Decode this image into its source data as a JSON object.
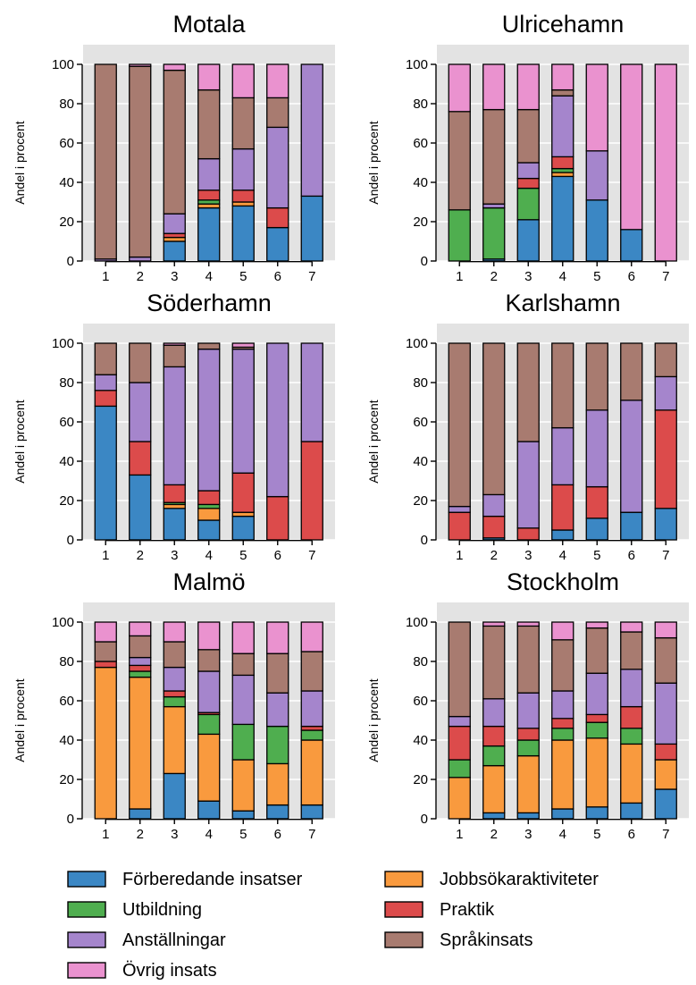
{
  "colors": {
    "forberedande": "#3b87c4",
    "jobbsok": "#f99a3e",
    "utbildning": "#4fae4f",
    "praktik": "#dc4b4b",
    "anstallningar": "#a585cc",
    "sprakinsats": "#a87b70",
    "ovrig": "#ea92cf",
    "panel_bg": "#e3e3e3"
  },
  "legend": {
    "items": [
      {
        "key": "forberedande",
        "label": "Förberedande insatser"
      },
      {
        "key": "jobbsok",
        "label": "Jobbsökaraktiviteter"
      },
      {
        "key": "utbildning",
        "label": "Utbildning"
      },
      {
        "key": "praktik",
        "label": "Praktik"
      },
      {
        "key": "anstallningar",
        "label": "Anställningar"
      },
      {
        "key": "sprakinsats",
        "label": "Språkinsats"
      },
      {
        "key": "ovrig",
        "label": "Övrig insats"
      }
    ]
  },
  "chart_data": {
    "type": "bar",
    "stacked": true,
    "stack_order": [
      "forberedande",
      "jobbsok",
      "utbildning",
      "praktik",
      "anstallningar",
      "sprakinsats",
      "ovrig"
    ],
    "ylabel": "Andel i procent",
    "ylim": [
      0,
      100
    ],
    "yticks": [
      0,
      20,
      40,
      60,
      80,
      100
    ],
    "categories": [
      "1",
      "2",
      "3",
      "4",
      "5",
      "6",
      "7"
    ],
    "grid": true,
    "legend_position": "bottom",
    "panels": [
      {
        "title": "Motala",
        "bars": [
          {
            "forberedande": 0,
            "jobbsok": 0,
            "utbildning": 0,
            "praktik": 0,
            "anstallningar": 1,
            "sprakinsats": 99,
            "ovrig": 0
          },
          {
            "forberedande": 0,
            "jobbsok": 0,
            "utbildning": 0,
            "praktik": 0,
            "anstallningar": 2,
            "sprakinsats": 97,
            "ovrig": 1
          },
          {
            "forberedande": 10,
            "jobbsok": 2,
            "utbildning": 0,
            "praktik": 2,
            "anstallningar": 10,
            "sprakinsats": 73,
            "ovrig": 3
          },
          {
            "forberedande": 27,
            "jobbsok": 2,
            "utbildning": 2,
            "praktik": 5,
            "anstallningar": 16,
            "sprakinsats": 35,
            "ovrig": 13
          },
          {
            "forberedande": 28,
            "jobbsok": 2,
            "utbildning": 0,
            "praktik": 6,
            "anstallningar": 21,
            "sprakinsats": 26,
            "ovrig": 17
          },
          {
            "forberedande": 17,
            "jobbsok": 0,
            "utbildning": 0,
            "praktik": 10,
            "anstallningar": 41,
            "sprakinsats": 15,
            "ovrig": 17
          },
          {
            "forberedande": 33,
            "jobbsok": 0,
            "utbildning": 0,
            "praktik": 0,
            "anstallningar": 67,
            "sprakinsats": 0,
            "ovrig": 0
          }
        ]
      },
      {
        "title": "Ulricehamn",
        "bars": [
          {
            "forberedande": 0,
            "jobbsok": 0,
            "utbildning": 26,
            "praktik": 0,
            "anstallningar": 0,
            "sprakinsats": 50,
            "ovrig": 24
          },
          {
            "forberedande": 1,
            "jobbsok": 0,
            "utbildning": 26,
            "praktik": 0,
            "anstallningar": 2,
            "sprakinsats": 48,
            "ovrig": 23
          },
          {
            "forberedande": 21,
            "jobbsok": 0,
            "utbildning": 16,
            "praktik": 5,
            "anstallningar": 8,
            "sprakinsats": 27,
            "ovrig": 23
          },
          {
            "forberedande": 43,
            "jobbsok": 2,
            "utbildning": 2,
            "praktik": 6,
            "anstallningar": 31,
            "sprakinsats": 3,
            "ovrig": 13
          },
          {
            "forberedande": 31,
            "jobbsok": 0,
            "utbildning": 0,
            "praktik": 0,
            "anstallningar": 25,
            "sprakinsats": 0,
            "ovrig": 44
          },
          {
            "forberedande": 16,
            "jobbsok": 0,
            "utbildning": 0,
            "praktik": 0,
            "anstallningar": 0,
            "sprakinsats": 0,
            "ovrig": 84
          },
          {
            "forberedande": 0,
            "jobbsok": 0,
            "utbildning": 0,
            "praktik": 0,
            "anstallningar": 0,
            "sprakinsats": 0,
            "ovrig": 100
          }
        ]
      },
      {
        "title": "Söderhamn",
        "bars": [
          {
            "forberedande": 68,
            "jobbsok": 0,
            "utbildning": 0,
            "praktik": 8,
            "anstallningar": 8,
            "sprakinsats": 16,
            "ovrig": 0
          },
          {
            "forberedande": 33,
            "jobbsok": 0,
            "utbildning": 0,
            "praktik": 17,
            "anstallningar": 30,
            "sprakinsats": 20,
            "ovrig": 0
          },
          {
            "forberedande": 16,
            "jobbsok": 2,
            "utbildning": 1,
            "praktik": 9,
            "anstallningar": 60,
            "sprakinsats": 11,
            "ovrig": 1
          },
          {
            "forberedande": 10,
            "jobbsok": 6,
            "utbildning": 2,
            "praktik": 7,
            "anstallningar": 72,
            "sprakinsats": 3,
            "ovrig": 0
          },
          {
            "forberedande": 12,
            "jobbsok": 2,
            "utbildning": 0,
            "praktik": 20,
            "anstallningar": 63,
            "sprakinsats": 1,
            "ovrig": 2
          },
          {
            "forberedande": 0,
            "jobbsok": 0,
            "utbildning": 0,
            "praktik": 22,
            "anstallningar": 78,
            "sprakinsats": 0,
            "ovrig": 0
          },
          {
            "forberedande": 0,
            "jobbsok": 0,
            "utbildning": 0,
            "praktik": 50,
            "anstallningar": 50,
            "sprakinsats": 0,
            "ovrig": 0
          }
        ]
      },
      {
        "title": "Karlshamn",
        "bars": [
          {
            "forberedande": 0,
            "jobbsok": 0,
            "utbildning": 0,
            "praktik": 14,
            "anstallningar": 3,
            "sprakinsats": 83,
            "ovrig": 0
          },
          {
            "forberedande": 1,
            "jobbsok": 0,
            "utbildning": 0,
            "praktik": 11,
            "anstallningar": 11,
            "sprakinsats": 77,
            "ovrig": 0
          },
          {
            "forberedande": 0,
            "jobbsok": 0,
            "utbildning": 0,
            "praktik": 6,
            "anstallningar": 44,
            "sprakinsats": 50,
            "ovrig": 0
          },
          {
            "forberedande": 5,
            "jobbsok": 0,
            "utbildning": 0,
            "praktik": 23,
            "anstallningar": 29,
            "sprakinsats": 43,
            "ovrig": 0
          },
          {
            "forberedande": 11,
            "jobbsok": 0,
            "utbildning": 0,
            "praktik": 16,
            "anstallningar": 39,
            "sprakinsats": 34,
            "ovrig": 0
          },
          {
            "forberedande": 14,
            "jobbsok": 0,
            "utbildning": 0,
            "praktik": 0,
            "anstallningar": 57,
            "sprakinsats": 29,
            "ovrig": 0
          },
          {
            "forberedande": 16,
            "jobbsok": 0,
            "utbildning": 0,
            "praktik": 50,
            "anstallningar": 17,
            "sprakinsats": 17,
            "ovrig": 0
          }
        ]
      },
      {
        "title": "Malmö",
        "bars": [
          {
            "forberedande": 0,
            "jobbsok": 77,
            "utbildning": 0,
            "praktik": 3,
            "anstallningar": 0,
            "sprakinsats": 10,
            "ovrig": 10
          },
          {
            "forberedande": 5,
            "jobbsok": 67,
            "utbildning": 3,
            "praktik": 3,
            "anstallningar": 4,
            "sprakinsats": 11,
            "ovrig": 7
          },
          {
            "forberedande": 23,
            "jobbsok": 34,
            "utbildning": 5,
            "praktik": 3,
            "anstallningar": 12,
            "sprakinsats": 13,
            "ovrig": 10
          },
          {
            "forberedande": 9,
            "jobbsok": 34,
            "utbildning": 10,
            "praktik": 1,
            "anstallningar": 21,
            "sprakinsats": 11,
            "ovrig": 14
          },
          {
            "forberedande": 4,
            "jobbsok": 26,
            "utbildning": 18,
            "praktik": 0,
            "anstallningar": 25,
            "sprakinsats": 11,
            "ovrig": 16
          },
          {
            "forberedande": 7,
            "jobbsok": 21,
            "utbildning": 19,
            "praktik": 0,
            "anstallningar": 17,
            "sprakinsats": 20,
            "ovrig": 16
          },
          {
            "forberedande": 7,
            "jobbsok": 33,
            "utbildning": 5,
            "praktik": 2,
            "anstallningar": 18,
            "sprakinsats": 20,
            "ovrig": 15
          }
        ]
      },
      {
        "title": "Stockholm",
        "bars": [
          {
            "forberedande": 0,
            "jobbsok": 21,
            "utbildning": 9,
            "praktik": 17,
            "anstallningar": 5,
            "sprakinsats": 48,
            "ovrig": 0
          },
          {
            "forberedande": 3,
            "jobbsok": 24,
            "utbildning": 10,
            "praktik": 10,
            "anstallningar": 14,
            "sprakinsats": 37,
            "ovrig": 2
          },
          {
            "forberedande": 3,
            "jobbsok": 29,
            "utbildning": 8,
            "praktik": 6,
            "anstallningar": 18,
            "sprakinsats": 34,
            "ovrig": 2
          },
          {
            "forberedande": 5,
            "jobbsok": 35,
            "utbildning": 6,
            "praktik": 5,
            "anstallningar": 14,
            "sprakinsats": 26,
            "ovrig": 9
          },
          {
            "forberedande": 6,
            "jobbsok": 35,
            "utbildning": 8,
            "praktik": 4,
            "anstallningar": 21,
            "sprakinsats": 23,
            "ovrig": 3
          },
          {
            "forberedande": 8,
            "jobbsok": 30,
            "utbildning": 8,
            "praktik": 11,
            "anstallningar": 19,
            "sprakinsats": 19,
            "ovrig": 5
          },
          {
            "forberedande": 15,
            "jobbsok": 15,
            "utbildning": 0,
            "praktik": 8,
            "anstallningar": 31,
            "sprakinsats": 23,
            "ovrig": 8
          }
        ]
      }
    ]
  }
}
